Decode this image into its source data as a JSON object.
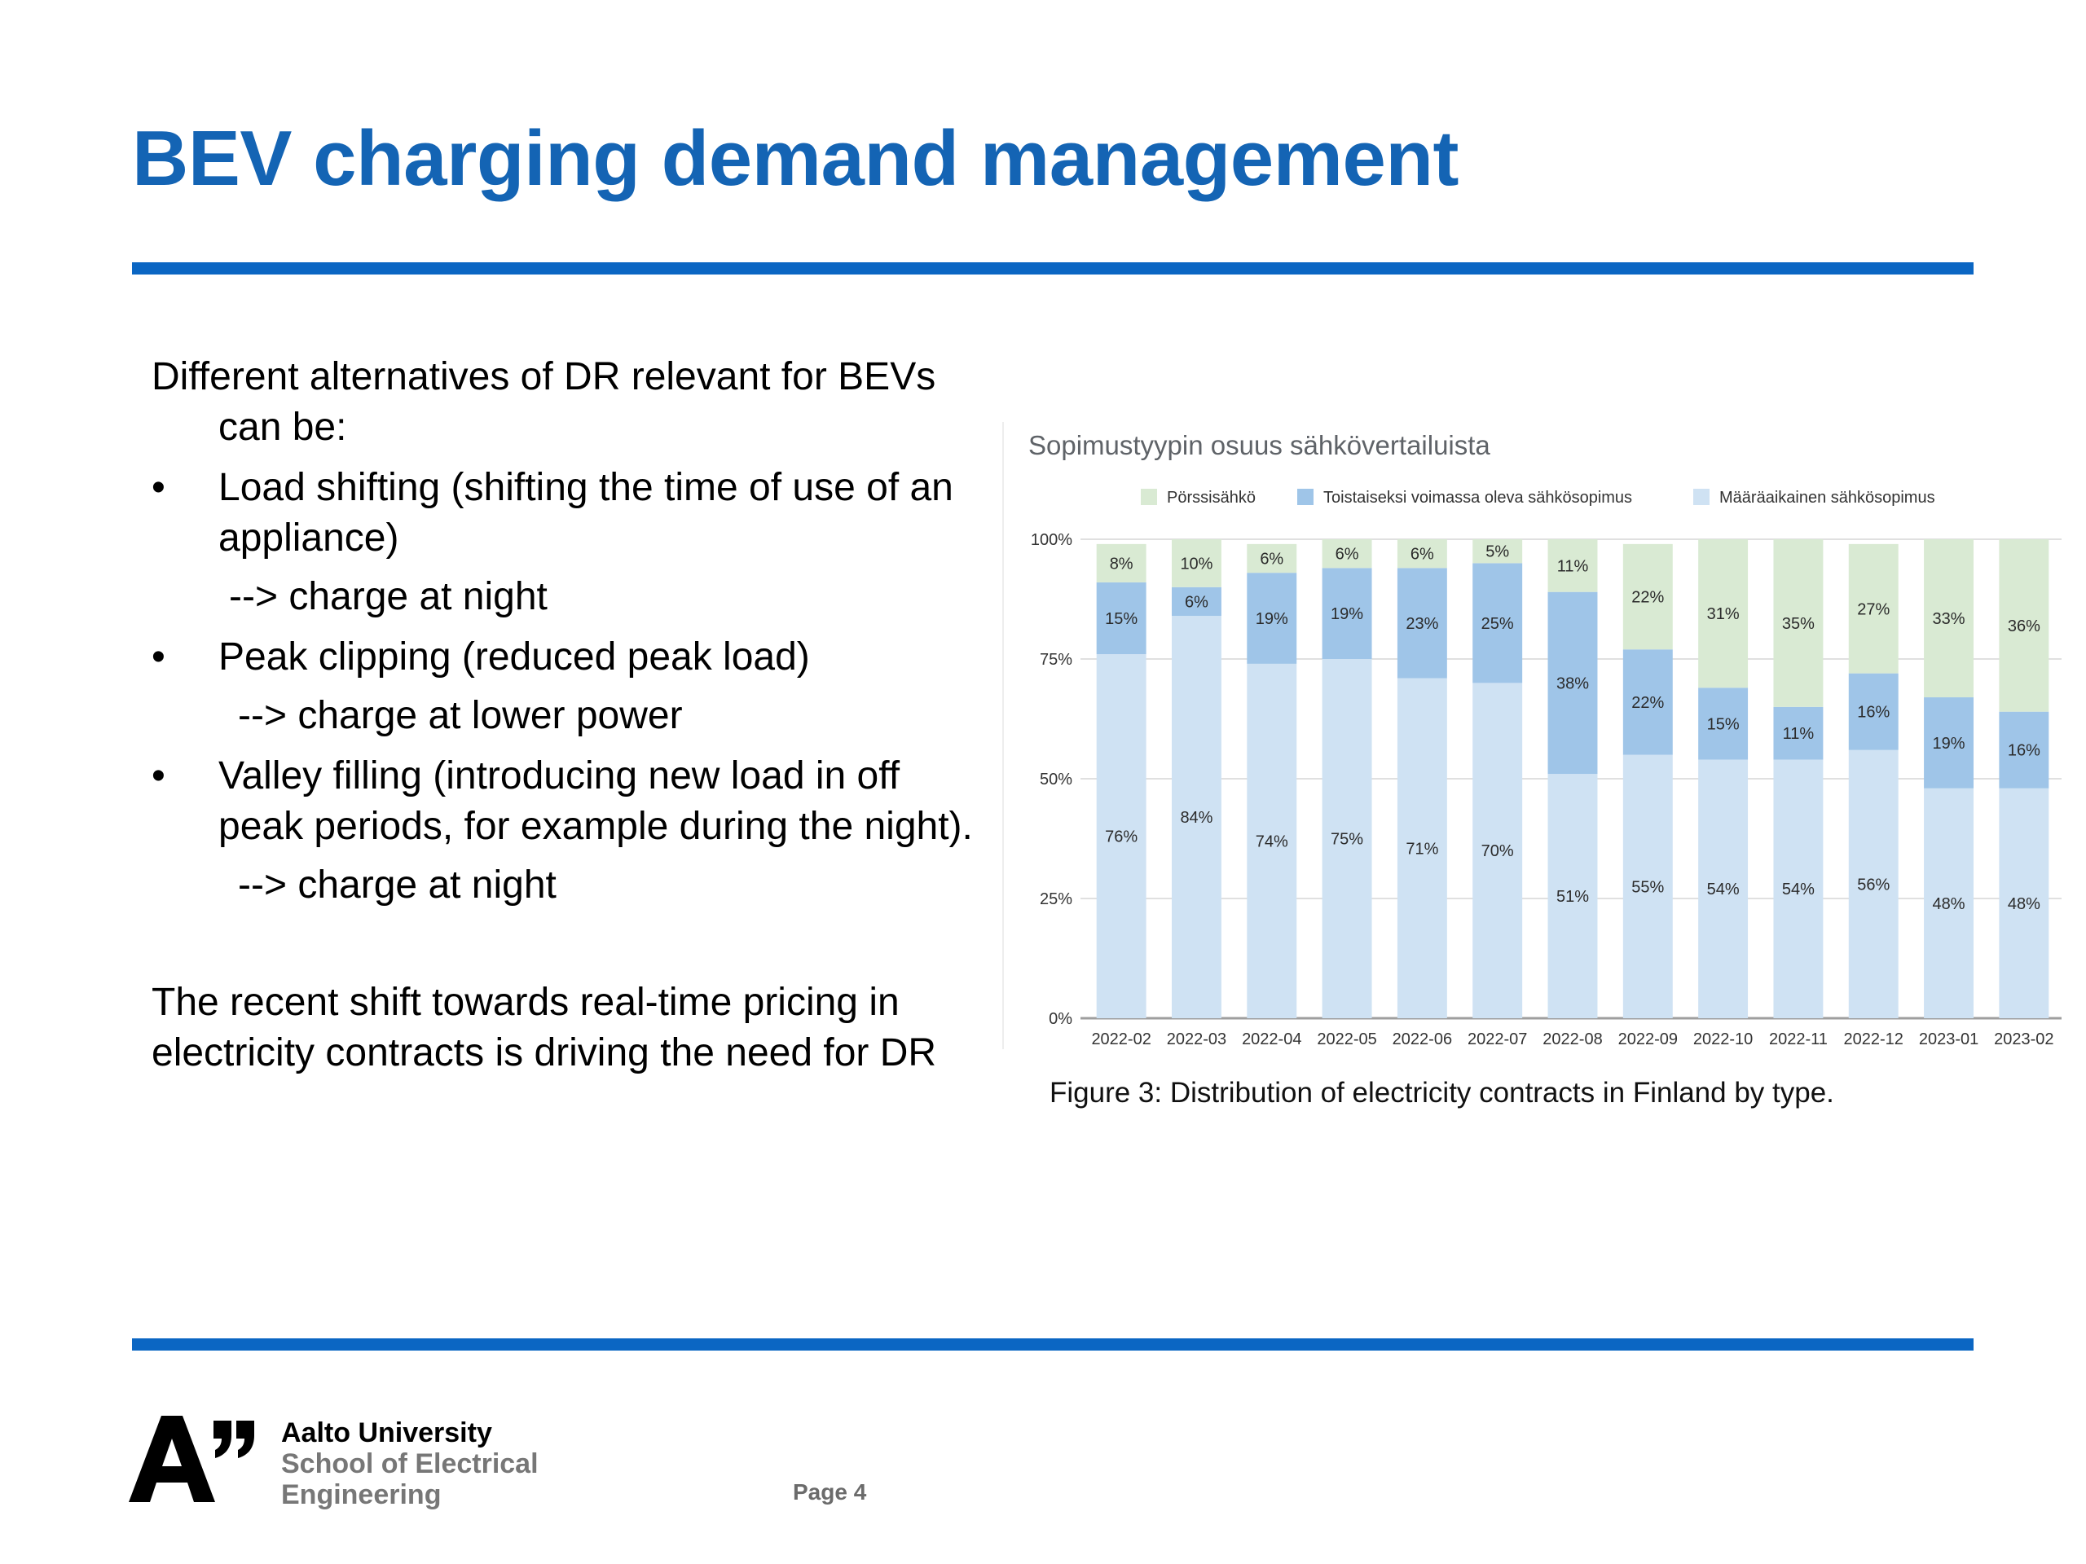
{
  "slide": {
    "title": "BEV charging demand management"
  },
  "body": {
    "intro": "Different alternatives of DR relevant for BEVs can be:",
    "bullets": [
      {
        "text": "Load shifting (shifting the time of use of an appliance)",
        "arrow": "--> charge at night"
      },
      {
        "text": "Peak clipping (reduced peak load)",
        "arrow": "--> charge at lower power"
      },
      {
        "text": "Valley filling (introducing new load in off peak periods, for example during the night).",
        "arrow": "--> charge at night"
      }
    ],
    "closing": "The recent shift towards real-time pricing in electricity contracts is driving the need for DR"
  },
  "chart_data": {
    "type": "bar",
    "stacked": true,
    "title": "Sopimustyypin osuus sähkövertailuista",
    "categories": [
      "2022-02",
      "2022-03",
      "2022-04",
      "2022-05",
      "2022-06",
      "2022-07",
      "2022-08",
      "2022-09",
      "2022-10",
      "2022-11",
      "2022-12",
      "2023-01",
      "2023-02"
    ],
    "series": [
      {
        "name": "Määräaikainen sähkösopimus",
        "color": "#cfe2f3",
        "values": [
          76,
          84,
          74,
          75,
          71,
          70,
          51,
          55,
          54,
          54,
          56,
          48,
          48
        ]
      },
      {
        "name": "Toistaiseksi voimassa oleva sähkösopimus",
        "color": "#9fc5e8",
        "values": [
          15,
          6,
          19,
          19,
          23,
          25,
          38,
          22,
          15,
          11,
          16,
          19,
          16
        ]
      },
      {
        "name": "Pörssisähkö",
        "color": "#d9ead3",
        "values": [
          8,
          10,
          6,
          6,
          6,
          5,
          11,
          22,
          31,
          35,
          27,
          33,
          36
        ]
      }
    ],
    "legend_order": [
      "Pörssisähkö",
      "Toistaiseksi voimassa oleva sähkösopimus",
      "Määräaikainen sähkösopimus"
    ],
    "yticks": [
      "0%",
      "25%",
      "50%",
      "75%",
      "100%"
    ],
    "ylim": [
      0,
      100
    ],
    "grid": true,
    "legend_position": "top",
    "caption": "Figure 3: Distribution of electricity contracts in Finland by type."
  },
  "footer": {
    "university": "Aalto University",
    "school_line1": "School of Electrical",
    "school_line2": "Engineering",
    "page": "Page 4"
  }
}
